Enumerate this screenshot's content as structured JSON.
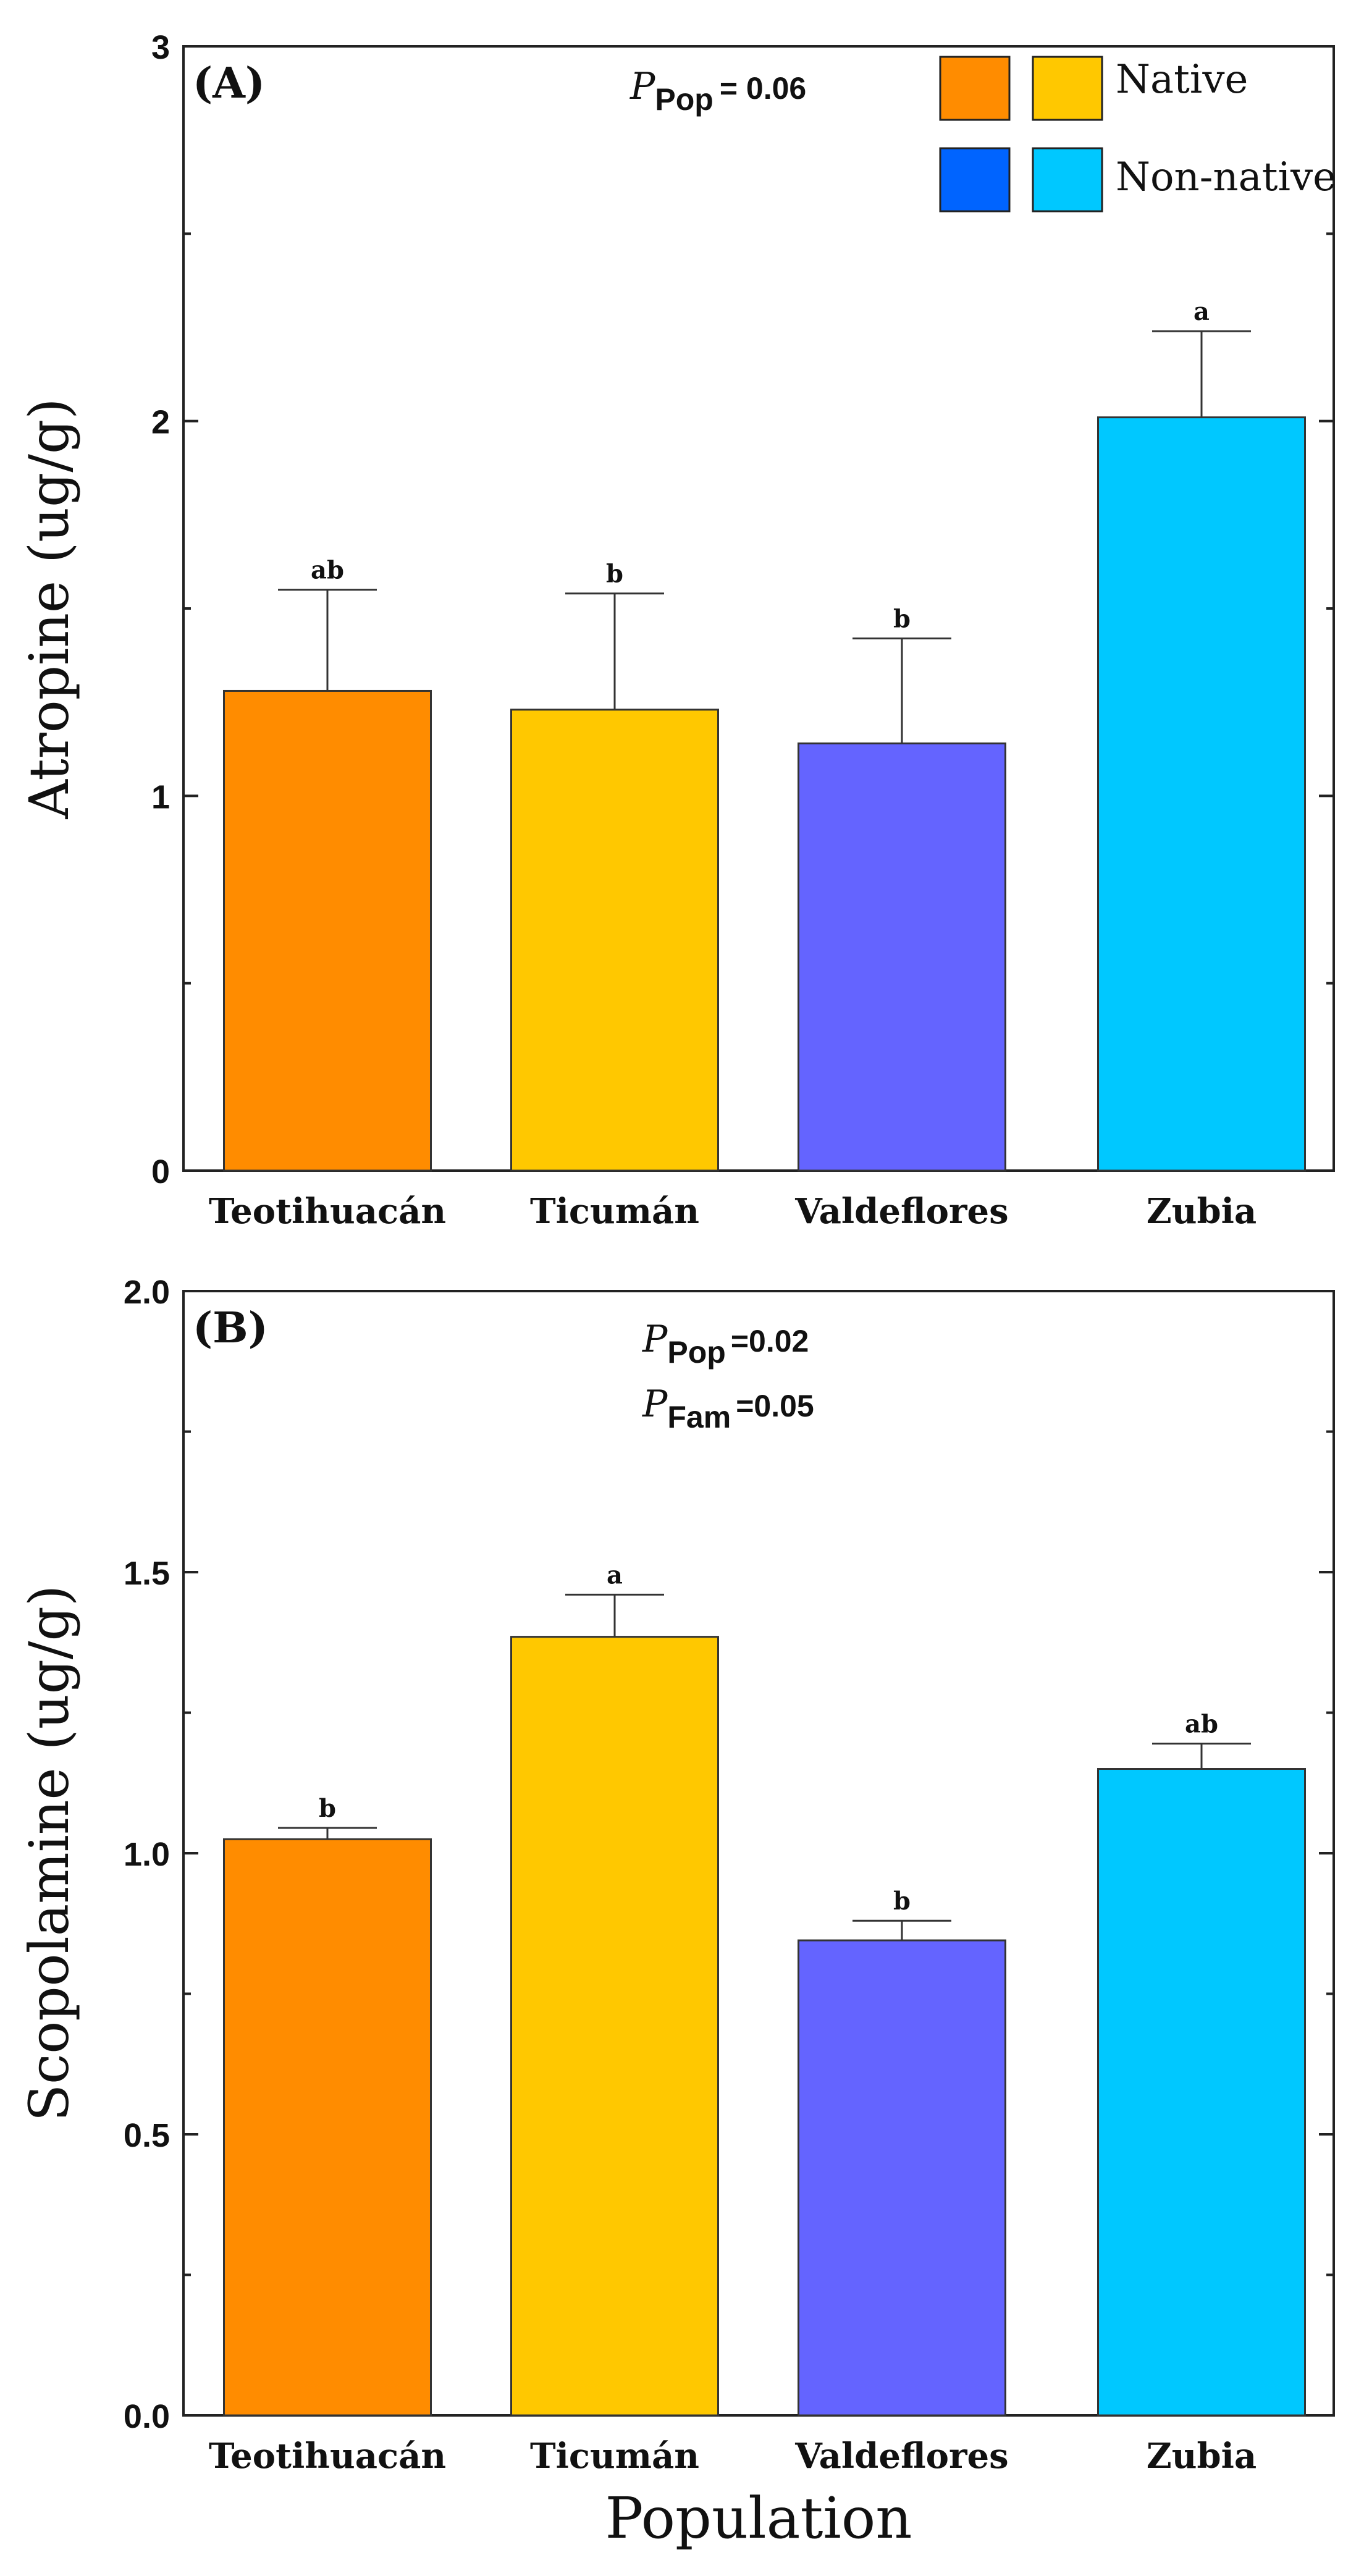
{
  "colors": {
    "teotihuacan": "#FF8C00",
    "ticuman": "#FFC800",
    "valdeflores": "#6464FF",
    "zubia": "#00C8FF",
    "legend_native_dark": "#FF8C00",
    "legend_native_light": "#FFC800",
    "legend_nonnative_dark": "#0064FF",
    "legend_nonnative_light": "#00C8FF"
  },
  "legend": {
    "native": "Native",
    "non_native": "Non-native"
  },
  "xlabel": "Population",
  "chart_data": [
    {
      "type": "bar",
      "panel_label": "(A)",
      "ylabel": "Atropine (ug/g)",
      "ylim": [
        0,
        3
      ],
      "yticks": [
        "0",
        "1",
        "2",
        "3"
      ],
      "yticks_values": [
        0,
        1,
        2,
        3
      ],
      "categories": [
        "Teotihuacán",
        "Ticumán",
        "Valdeflores",
        "Zubia"
      ],
      "values": [
        1.28,
        1.23,
        1.14,
        2.01
      ],
      "error_upper": [
        1.55,
        1.54,
        1.42,
        2.24
      ],
      "significance": [
        "ab",
        "b",
        "b",
        "a"
      ],
      "stats": [
        {
          "symbol": "P",
          "sub": "Pop",
          "text": "=  0.06"
        }
      ]
    },
    {
      "type": "bar",
      "panel_label": "(B)",
      "ylabel": "Scopolamine (ug/g)",
      "ylim": [
        0,
        2
      ],
      "yticks": [
        "0.0",
        "0.5",
        "1.0",
        "1.5",
        "2.0"
      ],
      "yticks_values": [
        0,
        0.5,
        1.0,
        1.5,
        2.0
      ],
      "categories": [
        "Teotihuacán",
        "Ticumán",
        "Valdeflores",
        "Zubia"
      ],
      "values": [
        1.025,
        1.385,
        0.845,
        1.15
      ],
      "error_upper": [
        1.045,
        1.46,
        0.88,
        1.195
      ],
      "significance": [
        "b",
        "a",
        "b",
        "ab"
      ],
      "stats": [
        {
          "symbol": "P",
          "sub": "Pop",
          "text": "=0.02"
        },
        {
          "symbol": "P",
          "sub": "Fam",
          "text": "=0.05"
        }
      ]
    }
  ]
}
